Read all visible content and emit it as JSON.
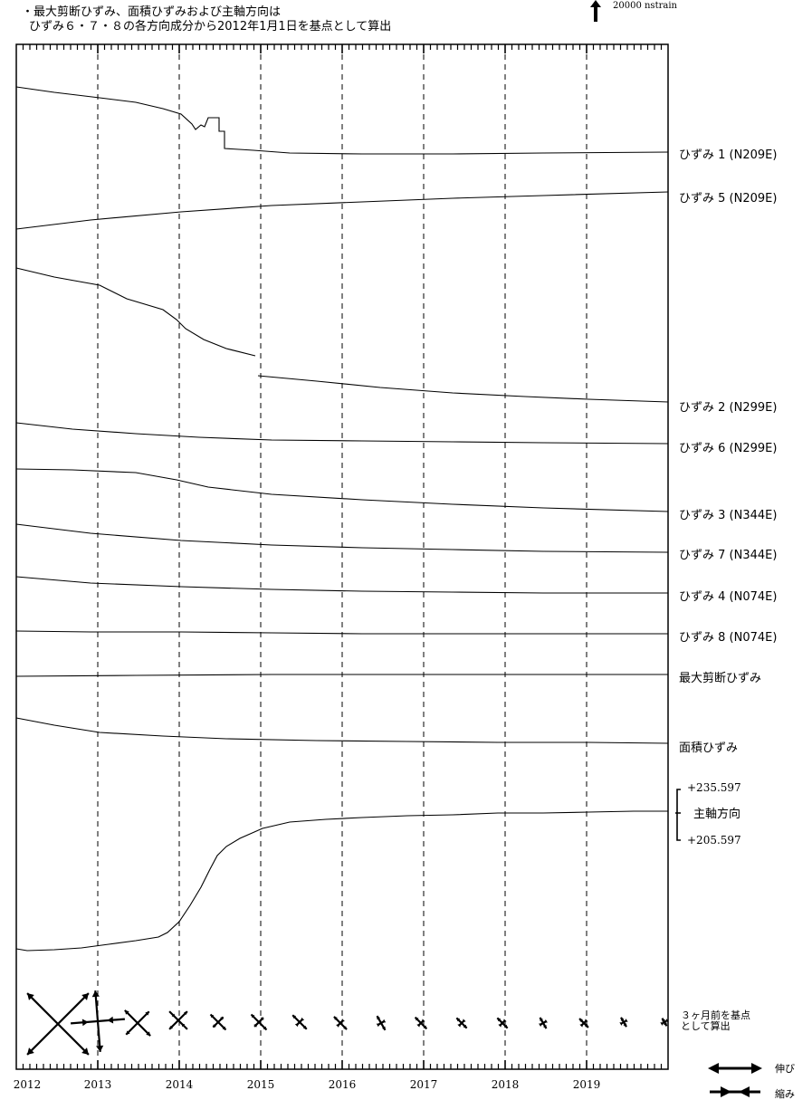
{
  "note": {
    "line1": "・最大剪断ひずみ、面積ひずみおよび主軸方向は",
    "line2": "ひずみ６・７・８の各方向成分から2012年1月1日を基点として算出"
  },
  "scale_bar": {
    "label": "20000 nstrain"
  },
  "chart_data": {
    "type": "line",
    "x_axis": {
      "range": [
        2012,
        2020
      ],
      "ticks": [
        "2012",
        "2013",
        "2014",
        "2015",
        "2016",
        "2017",
        "2018",
        "2019"
      ]
    },
    "grid": "vertical dashed lines at each year",
    "series": [
      {
        "name": "ひずみ 1 (N209E)",
        "label": "ひずみ 1 (N209E)"
      },
      {
        "name": "ひずみ 5 (N209E)",
        "label": "ひずみ 5 (N209E)"
      },
      {
        "name": "ひずみ 2 (N299E)",
        "label": "ひずみ 2 (N299E)"
      },
      {
        "name": "ひずみ 6 (N299E)",
        "label": "ひずみ 6 (N299E)"
      },
      {
        "name": "ひずみ 3 (N344E)",
        "label": "ひずみ 3 (N344E)"
      },
      {
        "name": "ひずみ 7 (N344E)",
        "label": "ひずみ 7 (N344E)"
      },
      {
        "name": "ひずみ 4 (N074E)",
        "label": "ひずみ 4 (N074E)"
      },
      {
        "name": "ひずみ 8 (N074E)",
        "label": "ひずみ 8 (N074E)"
      },
      {
        "name": "最大剪断ひずみ",
        "label": "最大剪断ひずみ"
      },
      {
        "name": "面積ひずみ",
        "label": "面積ひずみ"
      },
      {
        "name": "主軸方向",
        "label": "主軸方向",
        "range_top": "+235.597",
        "range_bottom": "+205.597"
      }
    ],
    "principal_axes_label": "３ヶ月前を基点として算出",
    "principal_axes_label_lines": [
      "３ヶ月前を基点",
      "として算出"
    ],
    "arrow_legend": {
      "extension": "伸び",
      "contraction": "縮み"
    }
  }
}
